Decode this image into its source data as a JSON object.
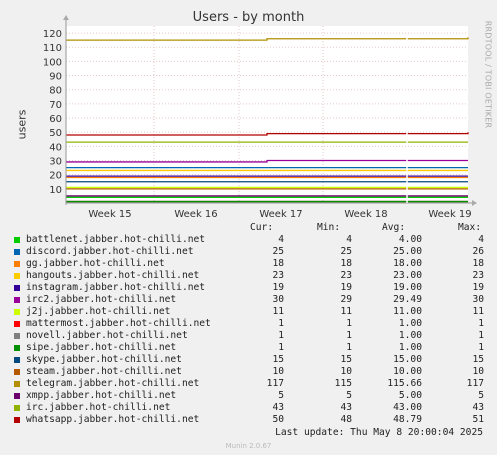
{
  "title": "Users - by month",
  "y_axis_label": "users",
  "watermark": "RRDTOOL / TOBI OETIKER",
  "legend_headers": {
    "cur": "Cur:",
    "min": "Min:",
    "avg": "Avg:",
    "max": "Max:"
  },
  "last_update": "Last update: Thu May  8 20:00:04 2025",
  "version": "Munin 2.0.67",
  "chart_data": {
    "type": "line",
    "title": "Users - by month",
    "ylabel": "users",
    "ylim": [
      0,
      125
    ],
    "y_ticks": [
      10,
      20,
      30,
      40,
      50,
      60,
      70,
      80,
      90,
      100,
      110,
      120
    ],
    "x_ticks": [
      "Week 15",
      "Week 16",
      "Week 17",
      "Week 18",
      "Week 19"
    ],
    "grid": true,
    "series": [
      {
        "name": "battlenet.jabber.hot-chilli.net",
        "color": "#00cc00",
        "cur": "4",
        "min": "4",
        "avg": "4.00",
        "max": "4",
        "values": [
          4,
          4,
          4,
          4,
          4
        ]
      },
      {
        "name": "discord.jabber.hot-chilli.net",
        "color": "#0066b3",
        "cur": "25",
        "min": "25",
        "avg": "25.00",
        "max": "26",
        "values": [
          25,
          25,
          25,
          25,
          25
        ]
      },
      {
        "name": "gg.jabber.hot-chilli.net",
        "color": "#ff8000",
        "cur": "18",
        "min": "18",
        "avg": "18.00",
        "max": "18",
        "values": [
          18,
          18,
          18,
          18,
          18
        ]
      },
      {
        "name": "hangouts.jabber.hot-chilli.net",
        "color": "#ffcc00",
        "cur": "23",
        "min": "23",
        "avg": "23.00",
        "max": "23",
        "values": [
          23,
          23,
          23,
          23,
          23
        ]
      },
      {
        "name": "instagram.jabber.hot-chilli.net",
        "color": "#330099",
        "cur": "19",
        "min": "19",
        "avg": "19.00",
        "max": "19",
        "values": [
          19,
          19,
          19,
          19,
          19
        ]
      },
      {
        "name": "irc2.jabber.hot-chilli.net",
        "color": "#990099",
        "cur": "30",
        "min": "29",
        "avg": "29.49",
        "max": "30",
        "values": [
          29,
          29,
          30,
          30,
          30
        ]
      },
      {
        "name": "j2j.jabber.hot-chilli.net",
        "color": "#ccff00",
        "cur": "11",
        "min": "11",
        "avg": "11.00",
        "max": "11",
        "values": [
          11,
          11,
          11,
          11,
          11
        ]
      },
      {
        "name": "mattermost.jabber.hot-chilli.net",
        "color": "#ff0000",
        "cur": "1",
        "min": "1",
        "avg": "1.00",
        "max": "1",
        "values": [
          1,
          1,
          1,
          1,
          1
        ]
      },
      {
        "name": "novell.jabber.hot-chilli.net",
        "color": "#808080",
        "cur": "1",
        "min": "1",
        "avg": "1.00",
        "max": "1",
        "values": [
          1,
          1,
          1,
          1,
          1
        ]
      },
      {
        "name": "sipe.jabber.hot-chilli.net",
        "color": "#008f00",
        "cur": "1",
        "min": "1",
        "avg": "1.00",
        "max": "1",
        "values": [
          1,
          1,
          1,
          1,
          1
        ]
      },
      {
        "name": "skype.jabber.hot-chilli.net",
        "color": "#00487d",
        "cur": "15",
        "min": "15",
        "avg": "15.00",
        "max": "15",
        "values": [
          15,
          15,
          15,
          15,
          15
        ]
      },
      {
        "name": "steam.jabber.hot-chilli.net",
        "color": "#b35a00",
        "cur": "10",
        "min": "10",
        "avg": "10.00",
        "max": "10",
        "values": [
          10,
          10,
          10,
          10,
          10
        ]
      },
      {
        "name": "telegram.jabber.hot-chilli.net",
        "color": "#b38f00",
        "cur": "117",
        "min": "115",
        "avg": "115.66",
        "max": "117",
        "values": [
          115,
          115,
          116,
          116,
          117
        ]
      },
      {
        "name": "xmpp.jabber.hot-chilli.net",
        "color": "#6b006b",
        "cur": "5",
        "min": "5",
        "avg": "5.00",
        "max": "5",
        "values": [
          5,
          5,
          5,
          5,
          5
        ]
      },
      {
        "name": "irc.jabber.hot-chilli.net",
        "color": "#8fb300",
        "cur": "43",
        "min": "43",
        "avg": "43.00",
        "max": "43",
        "values": [
          43,
          43,
          43,
          43,
          43
        ]
      },
      {
        "name": "whatsapp.jabber.hot-chilli.net",
        "color": "#b30000",
        "cur": "50",
        "min": "48",
        "avg": "48.79",
        "max": "51",
        "values": [
          48,
          48,
          49,
          49,
          50
        ]
      }
    ]
  }
}
